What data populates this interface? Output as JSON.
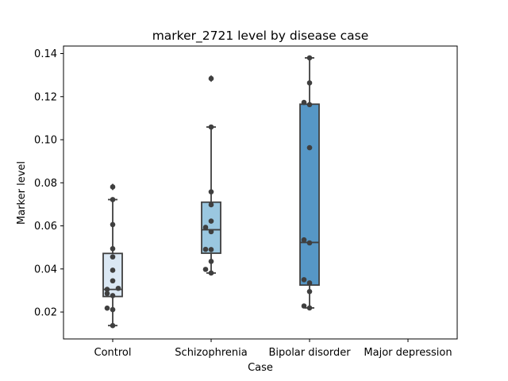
{
  "chart_data": {
    "type": "box",
    "title": "marker_2721 level by disease case",
    "xlabel": "Case",
    "ylabel": "Marker level",
    "categories": [
      "Control",
      "Schizophrenia",
      "Bipolar disorder",
      "Major depression"
    ],
    "ylim": [
      0.0075,
      0.1435
    ],
    "yticks": [
      "0.02",
      "0.04",
      "0.06",
      "0.08",
      "0.10",
      "0.12",
      "0.14"
    ],
    "grid": false,
    "box_colors": [
      "#dbe8f4",
      "#9ac7e0",
      "#5697c6",
      ""
    ],
    "box_stats": [
      {
        "category": "Control",
        "whisker_low": 0.0137,
        "q1": 0.0272,
        "median": 0.0305,
        "q3": 0.0472,
        "whisker_high": 0.0722,
        "outliers": [
          0.0781
        ]
      },
      {
        "category": "Schizophrenia",
        "whisker_low": 0.0381,
        "q1": 0.0473,
        "median": 0.0582,
        "q3": 0.071,
        "whisker_high": 0.1059,
        "outliers": [
          0.1284
        ]
      },
      {
        "category": "Bipolar disorder",
        "whisker_low": 0.0219,
        "q1": 0.0325,
        "median": 0.0523,
        "q3": 0.1165,
        "whisker_high": 0.138,
        "outliers": []
      },
      {
        "category": "Major depression",
        "whisker_low": null,
        "q1": null,
        "median": null,
        "q3": null,
        "whisker_high": null,
        "outliers": []
      }
    ],
    "points": [
      {
        "category": "Control",
        "values": [
          0.0137,
          0.0211,
          0.0218,
          0.0276,
          0.0286,
          0.0305,
          0.031,
          0.0345,
          0.0394,
          0.0456,
          0.0494,
          0.0606,
          0.0722,
          0.0781
        ]
      },
      {
        "category": "Schizophrenia",
        "values": [
          0.0381,
          0.0398,
          0.0435,
          0.049,
          0.0491,
          0.0573,
          0.0593,
          0.0622,
          0.0698,
          0.0758,
          0.1059,
          0.1284
        ]
      },
      {
        "category": "Bipolar disorder",
        "values": [
          0.0219,
          0.0228,
          0.0295,
          0.0335,
          0.035,
          0.0521,
          0.0535,
          0.0963,
          0.1163,
          0.1173,
          0.1264,
          0.138
        ]
      },
      {
        "category": "Major depression",
        "values": []
      }
    ]
  }
}
